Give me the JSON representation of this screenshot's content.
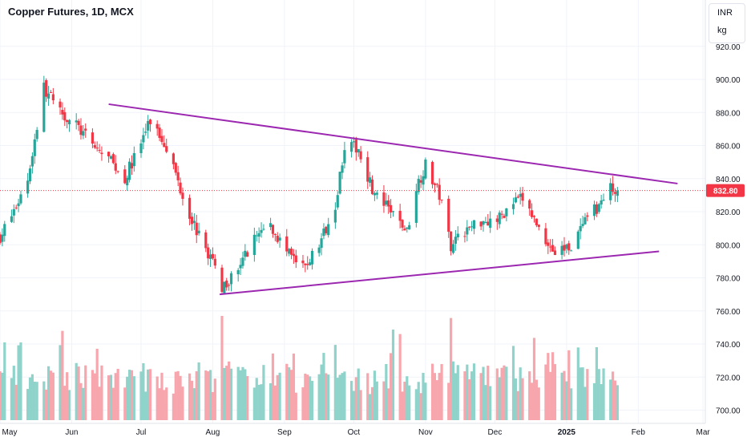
{
  "header": {
    "title": "Copper Futures, 1D, MCX"
  },
  "units": {
    "currency": "INR",
    "quantity": "kg"
  },
  "colors": {
    "up": "#26a69a",
    "down": "#f23645",
    "vol_up": "#8fd3cb",
    "vol_down": "#f7a6ad",
    "trendline": "#9c27b0",
    "price_line": "#f23645",
    "price_badge_bg": "#f23645",
    "grid": "#f0f3fa",
    "text": "#131722"
  },
  "chart_data": {
    "type": "candlestick",
    "title": "Copper Futures, 1D, MCX",
    "y_ticks": [
      "920.00",
      "900.00",
      "880.00",
      "860.00",
      "840.00",
      "820.00",
      "800.00",
      "780.00",
      "760.00",
      "740.00",
      "720.00",
      "700.00"
    ],
    "y_tick_values": [
      920,
      900,
      880,
      860,
      840,
      820,
      800,
      780,
      760,
      740,
      720,
      700
    ],
    "x_ticks": [
      "May",
      "Jun",
      "Jul",
      "Aug",
      "Sep",
      "Oct",
      "Nov",
      "Dec",
      "2025",
      "Feb",
      "Mar"
    ],
    "x_tick_dates": [
      "2024-05-01",
      "2024-06-01",
      "2024-07-01",
      "2024-08-01",
      "2024-09-01",
      "2024-10-01",
      "2024-11-01",
      "2024-12-01",
      "2025-01-01",
      "2025-02-01",
      "2025-03-01"
    ],
    "ylim": [
      692,
      948
    ],
    "xlim": [
      "2024-05-01",
      "2025-03-02"
    ],
    "last_price": 832.8,
    "last_price_label": "832.80",
    "trendlines": [
      {
        "name": "upper",
        "points": [
          [
            "2024-06-17",
            885
          ],
          [
            "2025-02-18",
            837
          ]
        ]
      },
      {
        "name": "lower",
        "points": [
          [
            "2024-08-04",
            770
          ],
          [
            "2025-02-10",
            796
          ]
        ]
      }
    ],
    "price_anchors": [
      [
        "2024-05-01",
        805
      ],
      [
        "2024-05-07",
        820
      ],
      [
        "2024-05-13",
        840
      ],
      [
        "2024-05-20",
        895
      ],
      [
        "2024-05-27",
        880
      ],
      [
        "2024-06-03",
        872
      ],
      [
        "2024-06-10",
        860
      ],
      [
        "2024-06-17",
        852
      ],
      [
        "2024-06-24",
        840
      ],
      [
        "2024-07-01",
        862
      ],
      [
        "2024-07-05",
        875
      ],
      [
        "2024-07-12",
        860
      ],
      [
        "2024-07-19",
        830
      ],
      [
        "2024-07-26",
        805
      ],
      [
        "2024-08-01",
        790
      ],
      [
        "2024-08-05",
        775
      ],
      [
        "2024-08-12",
        785
      ],
      [
        "2024-08-19",
        805
      ],
      [
        "2024-08-26",
        812
      ],
      [
        "2024-09-02",
        795
      ],
      [
        "2024-09-09",
        785
      ],
      [
        "2024-09-16",
        800
      ],
      [
        "2024-09-23",
        825
      ],
      [
        "2024-09-27",
        860
      ],
      [
        "2024-10-03",
        858
      ],
      [
        "2024-10-10",
        830
      ],
      [
        "2024-10-17",
        820
      ],
      [
        "2024-10-24",
        808
      ],
      [
        "2024-10-28",
        835
      ],
      [
        "2024-11-01",
        848
      ],
      [
        "2024-11-07",
        830
      ],
      [
        "2024-11-12",
        800
      ],
      [
        "2024-11-18",
        808
      ],
      [
        "2024-11-25",
        815
      ],
      [
        "2024-12-02",
        815
      ],
      [
        "2024-12-09",
        825
      ],
      [
        "2024-12-13",
        828
      ],
      [
        "2024-12-20",
        810
      ],
      [
        "2024-12-27",
        795
      ],
      [
        "2025-01-03",
        800
      ],
      [
        "2025-01-10",
        815
      ],
      [
        "2025-01-17",
        828
      ],
      [
        "2025-01-21",
        836
      ],
      [
        "2025-01-23",
        832.8
      ]
    ],
    "volume_range": [
      0,
      100
    ],
    "volume_bars": [
      {
        "date": "2024-05-27",
        "direction": "up",
        "value": 72
      },
      {
        "date": "2024-08-05",
        "direction": "down",
        "value": 100
      },
      {
        "date": "2024-11-12",
        "direction": "down",
        "value": 98
      },
      {
        "date": "2025-01-14",
        "direction": "up",
        "value": 70
      }
    ]
  }
}
